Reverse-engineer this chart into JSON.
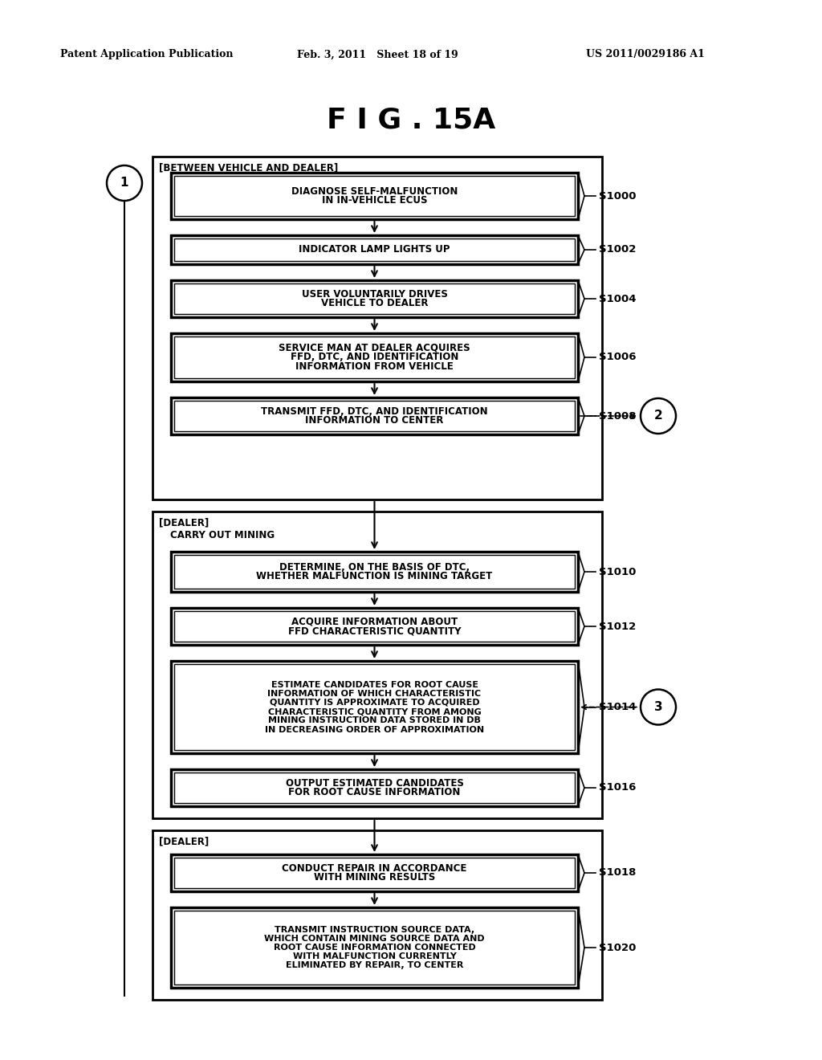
{
  "title": "F I G . 15A",
  "header_left": "Patent Application Publication",
  "header_mid": "Feb. 3, 2011   Sheet 18 of 19",
  "header_right": "US 2011/0029186 A1",
  "bg_color": "#ffffff",
  "section1_label": "[BETWEEN VEHICLE AND DEALER]",
  "section2_label": "[DEALER]",
  "section2b_label": "CARRY OUT MINING",
  "section3_label": "[DEALER]",
  "s1000_lines": [
    "DIAGNOSE SELF-MALFUNCTION",
    "IN IN-VEHICLE ECUS"
  ],
  "s1002_lines": [
    "INDICATOR LAMP LIGHTS UP"
  ],
  "s1004_lines": [
    "USER VOLUNTARILY DRIVES",
    "VEHICLE TO DEALER"
  ],
  "s1006_lines": [
    "SERVICE MAN AT DEALER ACQUIRES",
    "FFD, DTC, AND IDENTIFICATION",
    "INFORMATION FROM VEHICLE"
  ],
  "s1008_lines": [
    "TRANSMIT FFD, DTC, AND IDENTIFICATION",
    "INFORMATION TO CENTER"
  ],
  "s1010_lines": [
    "DETERMINE, ON THE BASIS OF DTC,",
    "WHETHER MALFUNCTION IS MINING TARGET"
  ],
  "s1012_lines": [
    "ACQUIRE INFORMATION ABOUT",
    "FFD CHARACTERISTIC QUANTITY"
  ],
  "s1014_lines": [
    "ESTIMATE CANDIDATES FOR ROOT CAUSE",
    "INFORMATION OF WHICH CHARACTERISTIC",
    "QUANTITY IS APPROXIMATE TO ACQUIRED",
    "CHARACTERISTIC QUANTITY FROM AMONG",
    "MINING INSTRUCTION DATA STORED IN DB",
    "IN DECREASING ORDER OF APPROXIMATION"
  ],
  "s1016_lines": [
    "OUTPUT ESTIMATED CANDIDATES",
    "FOR ROOT CAUSE INFORMATION"
  ],
  "s1018_lines": [
    "CONDUCT REPAIR IN ACCORDANCE",
    "WITH MINING RESULTS"
  ],
  "s1020_lines": [
    "TRANSMIT INSTRUCTION SOURCE DATA,",
    "WHICH CONTAIN MINING SOURCE DATA AND",
    "ROOT CAUSE INFORMATION CONNECTED",
    "WITH MALFUNCTION CURRENTLY",
    "ELIMINATED BY REPAIR, TO CENTER"
  ]
}
